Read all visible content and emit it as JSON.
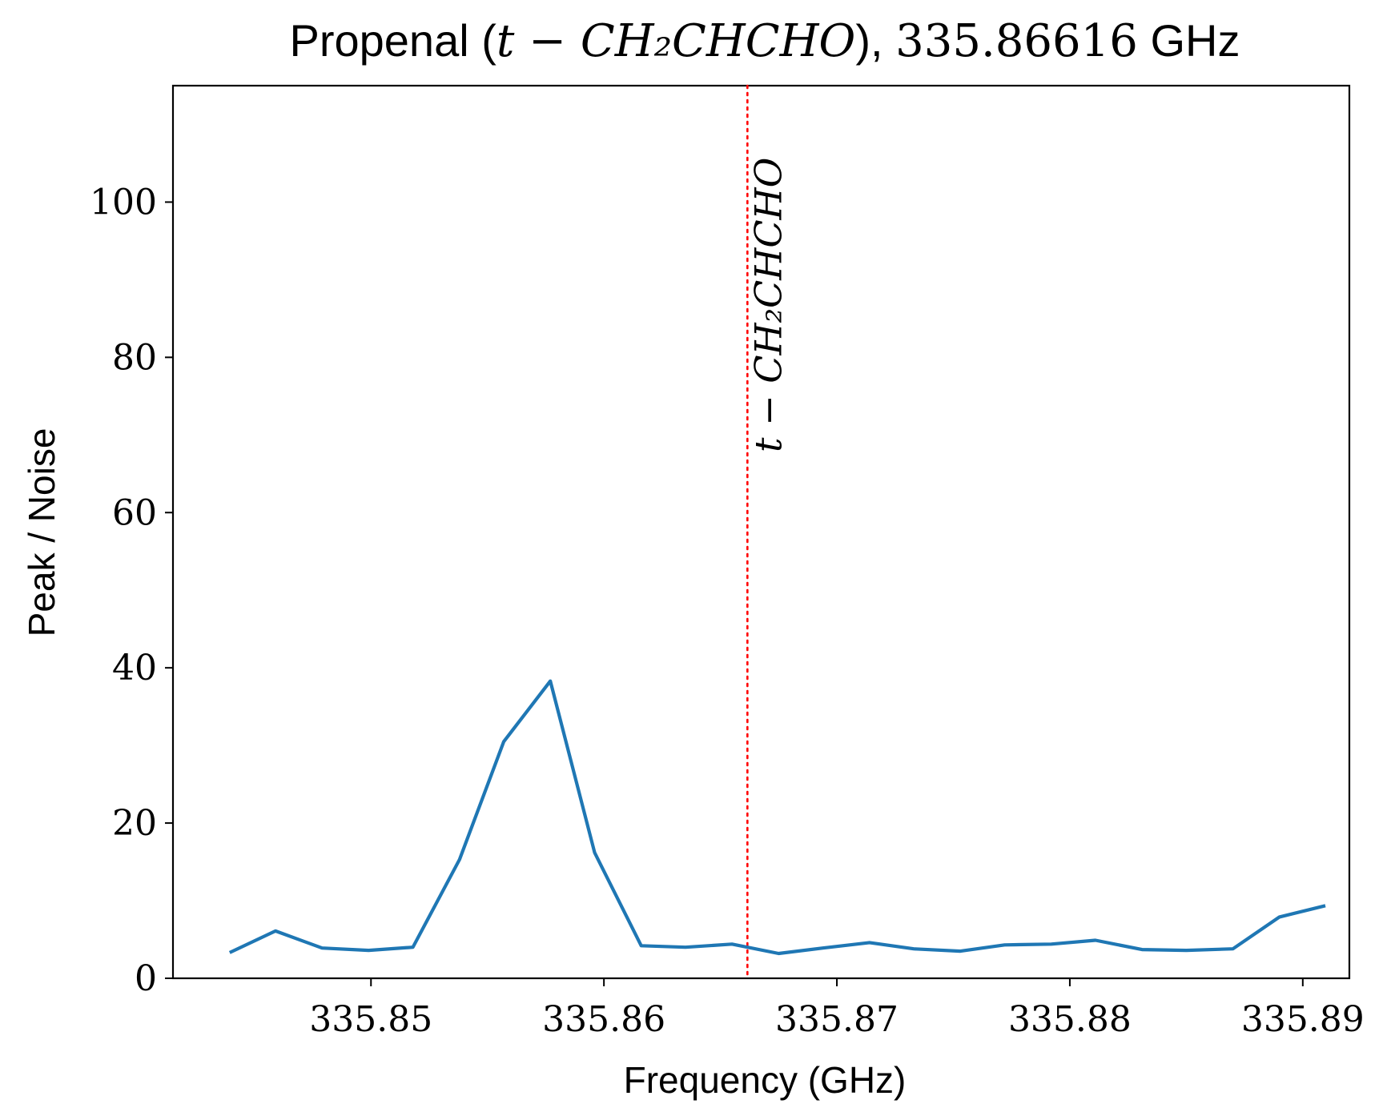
{
  "chart_data": {
    "type": "line",
    "title": {
      "prefix": "Propenal (",
      "formula": "t − CH₂CHCHO",
      "suffix": "), ",
      "frequency": "335.86616",
      "unit": " GHz"
    },
    "xlabel": "Frequency (GHz)",
    "ylabel": "Peak / Noise",
    "xlim": [
      335.8415,
      335.892
    ],
    "ylim": [
      0,
      115
    ],
    "x_ticks": [
      {
        "value": 335.85,
        "label": "335.85"
      },
      {
        "value": 335.86,
        "label": "335.86"
      },
      {
        "value": 335.87,
        "label": "335.87"
      },
      {
        "value": 335.88,
        "label": "335.88"
      },
      {
        "value": 335.89,
        "label": "335.89"
      }
    ],
    "y_ticks": [
      {
        "value": 0,
        "label": "0"
      },
      {
        "value": 20,
        "label": "20"
      },
      {
        "value": 40,
        "label": "40"
      },
      {
        "value": 60,
        "label": "60"
      },
      {
        "value": 80,
        "label": "80"
      },
      {
        "value": 100,
        "label": "100"
      }
    ],
    "grid": false,
    "series": [
      {
        "color": "#1f77b4",
        "x": [
          335.844,
          335.8459,
          335.8479,
          335.8499,
          335.8518,
          335.8538,
          335.8557,
          335.8577,
          335.8596,
          335.8616,
          335.8635,
          335.8655,
          335.8675,
          335.8694,
          335.8714,
          335.8733,
          335.8753,
          335.8772,
          335.8792,
          335.8811,
          335.8831,
          335.885,
          335.887,
          335.889,
          335.8909
        ],
        "y": [
          3.4,
          6.1,
          3.9,
          3.6,
          4.0,
          15.3,
          30.5,
          38.3,
          16.2,
          4.2,
          4.0,
          4.4,
          3.2,
          3.9,
          4.6,
          3.8,
          3.5,
          4.3,
          4.4,
          4.9,
          3.7,
          3.6,
          3.8,
          7.9,
          9.3
        ]
      }
    ],
    "annotations": [
      {
        "type": "vline",
        "x": 335.86616,
        "color": "#ff0000",
        "style": "dotted",
        "label": "t − CH₂CHCHO"
      }
    ]
  }
}
